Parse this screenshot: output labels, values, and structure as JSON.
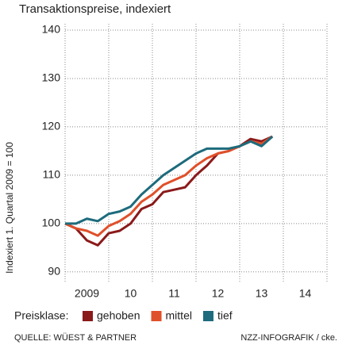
{
  "chart_data": {
    "type": "line",
    "title": "Transaktionspreise, indexiert",
    "y_label": "Indexiert 1. Quartal 2009 = 100",
    "legend_title": "Preisklase:",
    "source": "QUELLE: WÜEST & PARTNER",
    "credit": "NZZ-INFOGRAFIK / cke.",
    "x": [
      2009,
      2009.25,
      2009.5,
      2009.75,
      2010,
      2010.25,
      2010.5,
      2010.75,
      2011,
      2011.25,
      2011.5,
      2011.75,
      2012,
      2012.25,
      2012.5,
      2012.75,
      2013,
      2013.25,
      2013.5,
      2013.75
    ],
    "xlim": [
      2009,
      2015
    ],
    "xticks": [
      {
        "value": 2009.5,
        "label": "2009"
      },
      {
        "value": 2010.5,
        "label": "10"
      },
      {
        "value": 2011.5,
        "label": "11"
      },
      {
        "value": 2012.5,
        "label": "12"
      },
      {
        "value": 2013.5,
        "label": "13"
      },
      {
        "value": 2014.5,
        "label": "14"
      }
    ],
    "xgrid": [
      2009,
      2010,
      2011,
      2012,
      2013,
      2014,
      2015
    ],
    "ylim": [
      88,
      140
    ],
    "yticks": [
      90,
      100,
      110,
      120,
      130,
      140
    ],
    "grid": true,
    "series": [
      {
        "name": "gehoben",
        "color": "#8b1a1a",
        "values": [
          100,
          99,
          96.5,
          95.5,
          98,
          98.5,
          100,
          103,
          104,
          106.5,
          107,
          107.5,
          110,
          112,
          114.5,
          115,
          116,
          117.5,
          117,
          118
        ]
      },
      {
        "name": "mittel",
        "color": "#e0502a",
        "values": [
          100,
          99,
          98.5,
          97.5,
          99.5,
          100.5,
          102,
          104.5,
          106,
          108,
          109,
          110,
          112,
          113.5,
          114.5,
          115,
          116,
          117,
          116.5,
          118
        ]
      },
      {
        "name": "tief",
        "color": "#1d6b7c",
        "values": [
          100,
          100,
          101,
          100.5,
          102,
          102.5,
          103.5,
          106,
          108,
          110,
          111.5,
          113,
          114.5,
          115.5,
          115.5,
          115.5,
          116,
          117,
          116,
          118
        ]
      }
    ]
  }
}
